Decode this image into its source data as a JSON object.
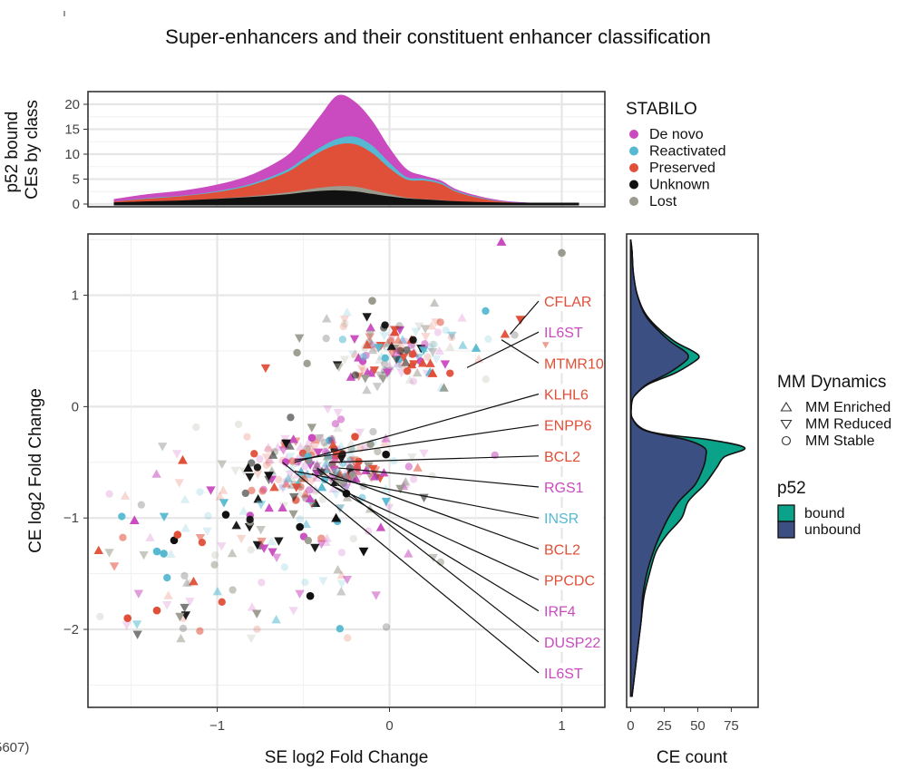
{
  "page": {
    "title": "Super-enhancers and their constituent enhancer classification",
    "edge_fragment": "5607)"
  },
  "colors": {
    "de_novo": "#c94bbf",
    "reactivated": "#56b9d1",
    "preserved": "#e04f38",
    "unknown": "#111111",
    "lost": "#9a9a8e",
    "bound": "#0aa288",
    "unbound": "#3b4f82"
  },
  "chart_data": [
    {
      "id": "top",
      "type": "area",
      "ylabel": "p52 bound\nCEs by class",
      "ylim": [
        0,
        22
      ],
      "yticks": [
        0,
        5,
        10,
        15,
        20
      ],
      "xlim": [
        -1.75,
        1.25
      ],
      "x": [
        -1.6,
        -1.4,
        -1.2,
        -1.0,
        -0.8,
        -0.6,
        -0.5,
        -0.4,
        -0.3,
        -0.2,
        -0.1,
        0.0,
        0.1,
        0.2,
        0.3,
        0.4,
        0.6,
        0.8,
        1.1
      ],
      "series": [
        {
          "name": "Unknown",
          "values": [
            0.2,
            0.4,
            0.6,
            0.9,
            1.3,
            1.8,
            2.2,
            2.5,
            2.6,
            2.4,
            1.9,
            1.4,
            1.0,
            0.8,
            0.6,
            0.4,
            0.2,
            0.1,
            0
          ]
        },
        {
          "name": "Lost",
          "values": [
            0,
            0.1,
            0.1,
            0.2,
            0.3,
            0.5,
            0.6,
            0.8,
            1.0,
            1.1,
            0.9,
            0.6,
            0.3,
            0.2,
            0.2,
            0.1,
            0,
            0,
            0
          ]
        },
        {
          "name": "Preserved",
          "values": [
            0.3,
            0.6,
            0.9,
            1.3,
            2.2,
            4.0,
            5.6,
            7.2,
            8.3,
            8.5,
            7.4,
            5.2,
            3.6,
            3.7,
            3.2,
            1.8,
            0.5,
            0.1,
            0
          ]
        },
        {
          "name": "Reactivated",
          "values": [
            0,
            0.1,
            0.1,
            0.2,
            0.3,
            0.5,
            0.7,
            0.9,
            1.2,
            1.5,
            1.5,
            1.1,
            0.5,
            0.4,
            0.3,
            0.2,
            0.1,
            0,
            0
          ]
        },
        {
          "name": "De novo",
          "values": [
            0.5,
            0.8,
            1.0,
            1.3,
            1.8,
            2.8,
            4.2,
            6.4,
            8.7,
            7.0,
            5.0,
            3.0,
            1.6,
            0.6,
            0.4,
            0.3,
            0.2,
            0.1,
            0
          ]
        }
      ]
    },
    {
      "id": "main",
      "type": "scatter",
      "xlabel": "SE log2 Fold Change",
      "ylabel": "CE log2 Fold Change",
      "xlim": [
        -1.75,
        1.25
      ],
      "ylim": [
        -2.7,
        1.55
      ],
      "xticks": [
        -1,
        0,
        1
      ],
      "yticks": [
        -2,
        -1,
        0,
        1
      ],
      "clusters": [
        {
          "cx": 0.05,
          "cy": 0.5,
          "sx": 0.22,
          "sy": 0.17,
          "n": 150,
          "pal": [
            0,
            2,
            4,
            4,
            1,
            2,
            3
          ]
        },
        {
          "cx": -0.38,
          "cy": -0.55,
          "sx": 0.24,
          "sy": 0.16,
          "n": 200,
          "pal": [
            0,
            0,
            2,
            2,
            4,
            1,
            3
          ]
        },
        {
          "cx": -0.55,
          "cy": -0.95,
          "sx": 0.4,
          "sy": 0.45,
          "n": 110,
          "pal": [
            0,
            2,
            4,
            1,
            3
          ]
        },
        {
          "cx": -1.25,
          "cy": -1.4,
          "sx": 0.25,
          "sy": 0.45,
          "n": 45,
          "pal": [
            0,
            2,
            1,
            4,
            3
          ]
        }
      ],
      "featured": [
        {
          "x": -0.6,
          "y": -0.33,
          "c": 3,
          "s": 1
        },
        {
          "x": -0.7,
          "y": -0.62,
          "c": 3,
          "s": 1
        },
        {
          "x": -0.25,
          "y": -0.78,
          "c": 3,
          "s": 2
        },
        {
          "x": -0.31,
          "y": -1.0,
          "c": 3,
          "s": 0
        },
        {
          "x": -0.46,
          "y": -1.7,
          "c": 3,
          "s": 2
        },
        {
          "x": -0.15,
          "y": -1.3,
          "c": 3,
          "s": 1
        },
        {
          "x": -0.02,
          "y": -0.43,
          "c": 3,
          "s": 2
        },
        {
          "x": -0.52,
          "y": -1.08,
          "c": 3,
          "s": 2
        },
        {
          "x": -0.95,
          "y": -0.97,
          "c": 3,
          "s": 2
        },
        {
          "x": -1.25,
          "y": -1.2,
          "c": 3,
          "s": 2
        },
        {
          "x": -0.82,
          "y": -0.55,
          "c": 3,
          "s": 0
        },
        {
          "x": 0.65,
          "y": 1.48,
          "c": 0,
          "s": 0
        },
        {
          "x": 0.76,
          "y": 0.78,
          "c": 2,
          "s": 1
        },
        {
          "x": 0.25,
          "y": 0.3,
          "c": 2,
          "s": 0
        },
        {
          "x": 0.03,
          "y": 0.67,
          "c": 2,
          "s": 0
        },
        {
          "x": -1.2,
          "y": -0.48,
          "c": 2,
          "s": 0
        },
        {
          "x": -1.52,
          "y": -1.9,
          "c": 2,
          "s": 2
        },
        {
          "x": -1.35,
          "y": -1.83,
          "c": 2,
          "s": 2
        },
        {
          "x": -1.48,
          "y": -1.02,
          "c": 0,
          "s": 0
        },
        {
          "x": -1.23,
          "y": -1.15,
          "c": 2,
          "s": 2
        },
        {
          "x": 1.0,
          "y": 1.38,
          "c": 4,
          "s": 2
        },
        {
          "x": -0.1,
          "y": 0.95,
          "c": 4,
          "s": 2
        },
        {
          "x": -0.45,
          "y": -0.28,
          "c": 0,
          "s": 2
        },
        {
          "x": -0.2,
          "y": -0.27,
          "c": 2,
          "s": 2
        },
        {
          "x": -1.31,
          "y": -1.32,
          "c": 1,
          "s": 2
        },
        {
          "x": -1.35,
          "y": -1.3,
          "c": 1,
          "s": 2
        }
      ],
      "gene_labels": [
        {
          "text": "CFLAR",
          "c": 2,
          "px": 0.7,
          "py": 0.65
        },
        {
          "text": "IL6ST",
          "c": 0,
          "px": 0.45,
          "py": 0.35
        },
        {
          "text": "MTMR10",
          "c": 2,
          "px": 0.65,
          "py": 0.6
        },
        {
          "text": "KLHL6",
          "c": 2,
          "px": -0.55,
          "py": -0.5
        },
        {
          "text": "ENPP6",
          "c": 2,
          "px": -0.55,
          "py": -0.48
        },
        {
          "text": "BCL2",
          "c": 2,
          "px": -0.35,
          "py": -0.5
        },
        {
          "text": "RGS1",
          "c": 0,
          "px": -0.3,
          "py": -0.55
        },
        {
          "text": "INSR",
          "c": 1,
          "px": -0.55,
          "py": -0.58
        },
        {
          "text": "BCL2",
          "c": 2,
          "px": -0.35,
          "py": -0.6
        },
        {
          "text": "PPCDC",
          "c": 2,
          "px": -0.32,
          "py": -0.72
        },
        {
          "text": "IRF4",
          "c": 0,
          "px": -0.45,
          "py": -0.6
        },
        {
          "text": "DUSP22",
          "c": 0,
          "px": -0.42,
          "py": -0.55
        },
        {
          "text": "IL6ST",
          "c": 0,
          "px": -0.62,
          "py": -0.5
        }
      ]
    },
    {
      "id": "right",
      "type": "area",
      "xlabel": "CE count",
      "xlim": [
        -3,
        95
      ],
      "xticks": [
        0,
        25,
        50,
        75
      ],
      "ylim": [
        -2.7,
        1.55
      ],
      "y": [
        1.5,
        1.4,
        1.2,
        1.0,
        0.8,
        0.6,
        0.5,
        0.45,
        0.4,
        0.3,
        0.2,
        0.1,
        0.05,
        0.0,
        -0.1,
        -0.2,
        -0.25,
        -0.3,
        -0.37,
        -0.45,
        -0.55,
        -0.7,
        -0.85,
        -1.0,
        -1.15,
        -1.3,
        -1.5,
        -1.7,
        -1.9,
        -2.1,
        -2.3,
        -2.6
      ],
      "unbound": [
        0,
        1,
        2,
        5,
        12,
        28,
        40,
        43,
        40,
        28,
        12,
        3,
        1,
        0.5,
        1,
        8,
        22,
        42,
        55,
        56,
        54,
        48,
        36,
        28,
        22,
        17,
        12,
        9,
        8,
        6,
        4,
        1
      ],
      "total": [
        0,
        1,
        2,
        5,
        13,
        31,
        46,
        51,
        47,
        33,
        13,
        3,
        1,
        0.5,
        1,
        9,
        25,
        60,
        85,
        70,
        64,
        55,
        43,
        38,
        27,
        19,
        14,
        10,
        8,
        6,
        4,
        1
      ]
    }
  ],
  "legend_stabilo": {
    "title": "STABILO",
    "items": [
      {
        "label": "De novo",
        "color": "#c94bbf"
      },
      {
        "label": "Reactivated",
        "color": "#56b9d1"
      },
      {
        "label": "Preserved",
        "color": "#e04f38"
      },
      {
        "label": "Unknown",
        "color": "#111111"
      },
      {
        "label": "Lost",
        "color": "#9a9a8e"
      }
    ]
  },
  "legend_dynamics": {
    "title": "MM Dynamics",
    "items": [
      {
        "label": "MM Enriched",
        "shape": "triangle-up"
      },
      {
        "label": "MM Reduced",
        "shape": "triangle-down"
      },
      {
        "label": "MM Stable",
        "shape": "circle"
      }
    ]
  },
  "legend_p52": {
    "title": "p52",
    "items": [
      {
        "label": "bound",
        "color": "#0aa288"
      },
      {
        "label": "unbound",
        "color": "#3b4f82"
      }
    ]
  }
}
